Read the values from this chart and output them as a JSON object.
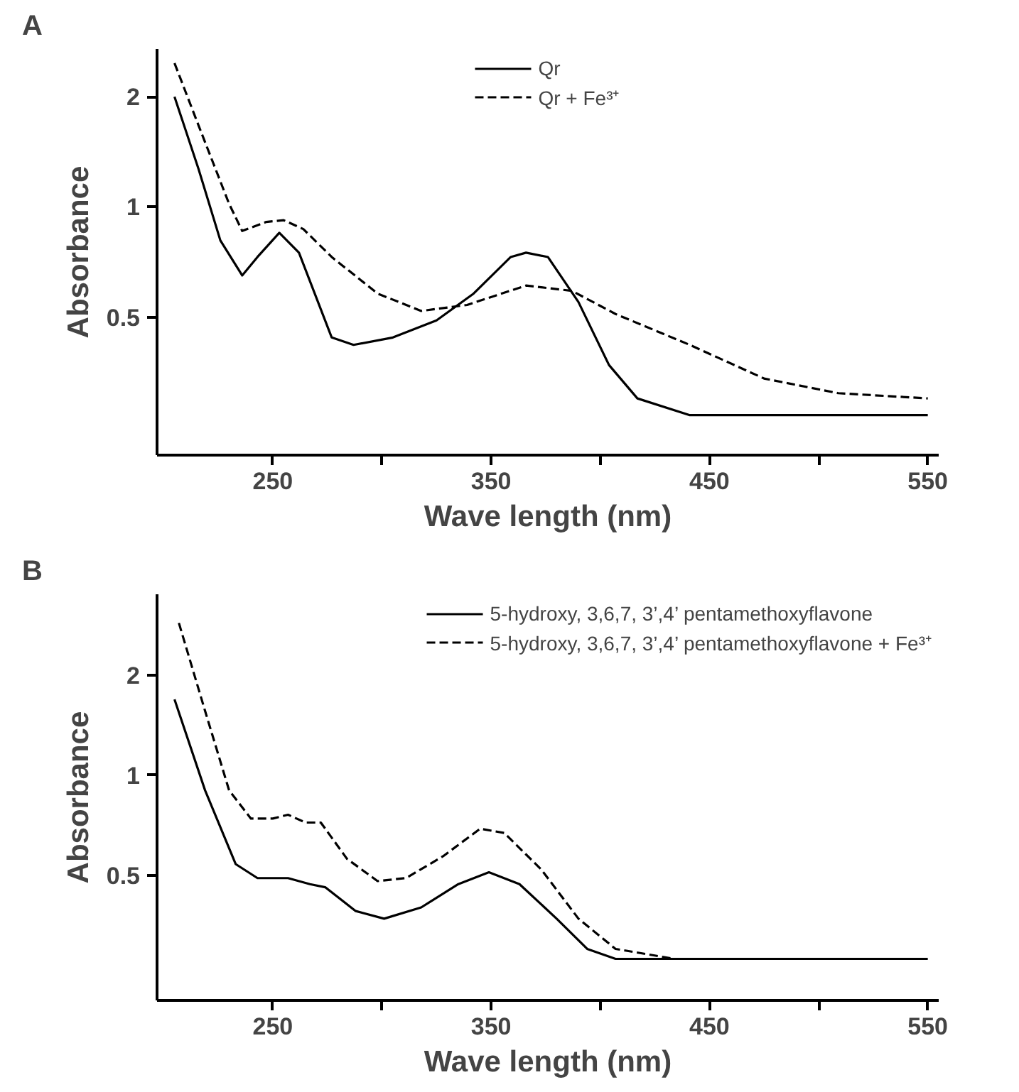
{
  "chart_data": [
    {
      "type": "line",
      "title": "A",
      "xlabel": "Wave length (nm)",
      "ylabel": "Absorbance",
      "log": "y",
      "grid": false,
      "legend": "top",
      "marker": "none",
      "xlim": [
        197,
        555
      ],
      "xticks": [
        250,
        {
          "value": 300,
          "label": null
        },
        350,
        {
          "value": 400,
          "label": null
        },
        450,
        {
          "value": 500,
          "label": null
        },
        550
      ],
      "ylim": [
        0.21,
        2.7
      ],
      "yticks": [
        0.5,
        1,
        2
      ],
      "series": [
        {
          "name": "Qr",
          "color": "#000000",
          "line_style": "solid",
          "x": [
            205,
            216,
            226,
            236,
            243,
            253,
            262,
            277,
            287,
            305,
            325,
            342,
            359,
            366,
            376,
            390,
            404,
            417,
            441,
            550
          ],
          "values": [
            2.0,
            1.27,
            0.81,
            0.65,
            0.73,
            0.85,
            0.75,
            0.44,
            0.42,
            0.44,
            0.49,
            0.58,
            0.73,
            0.75,
            0.73,
            0.55,
            0.37,
            0.3,
            0.27,
            0.27
          ]
        },
        {
          "name": "Qr + Fe³⁺",
          "color": "#000000",
          "line_style": "dashed",
          "x": [
            205,
            216,
            230,
            236,
            247,
            255,
            264,
            277,
            298,
            318,
            339,
            366,
            387,
            407,
            441,
            475,
            509,
            550
          ],
          "values": [
            2.47,
            1.67,
            1.02,
            0.86,
            0.91,
            0.92,
            0.87,
            0.73,
            0.58,
            0.52,
            0.54,
            0.61,
            0.59,
            0.51,
            0.42,
            0.34,
            0.31,
            0.3
          ]
        }
      ]
    },
    {
      "type": "line",
      "title": "B",
      "xlabel": "Wave length (nm)",
      "ylabel": "Absorbance",
      "log": "y",
      "grid": false,
      "legend": "top right",
      "marker": "none",
      "xlim": [
        197,
        555
      ],
      "xticks": [
        250,
        {
          "value": 300,
          "label": null
        },
        350,
        {
          "value": 400,
          "label": null
        },
        450,
        {
          "value": 500,
          "label": null
        },
        550
      ],
      "ylim": [
        0.21,
        3.5
      ],
      "yticks": [
        0.5,
        1,
        2
      ],
      "series": [
        {
          "name": "5-hydroxy, 3,6,7, 3’,4’ pentamethoxyflavone",
          "color": "#000000",
          "line_style": "solid",
          "x": [
            205,
            219,
            233,
            243,
            257,
            267,
            274,
            288,
            301,
            318,
            335,
            349,
            363,
            380,
            394,
            407,
            550
          ],
          "values": [
            1.69,
            0.9,
            0.54,
            0.49,
            0.49,
            0.47,
            0.46,
            0.39,
            0.37,
            0.4,
            0.47,
            0.51,
            0.47,
            0.37,
            0.3,
            0.28,
            0.28
          ]
        },
        {
          "name": "5-hydroxy, 3,6,7, 3’,4’ pentamethoxyflavone + Fe³⁺",
          "color": "#000000",
          "line_style": "dashed",
          "x": [
            207,
            219,
            230,
            240,
            250,
            257,
            265,
            272,
            284,
            298,
            311,
            328,
            345,
            356,
            373,
            390,
            407,
            434,
            550
          ],
          "values": [
            2.87,
            1.56,
            0.9,
            0.74,
            0.74,
            0.76,
            0.72,
            0.72,
            0.56,
            0.48,
            0.49,
            0.57,
            0.69,
            0.67,
            0.52,
            0.37,
            0.3,
            0.28,
            0.28
          ]
        }
      ]
    }
  ]
}
